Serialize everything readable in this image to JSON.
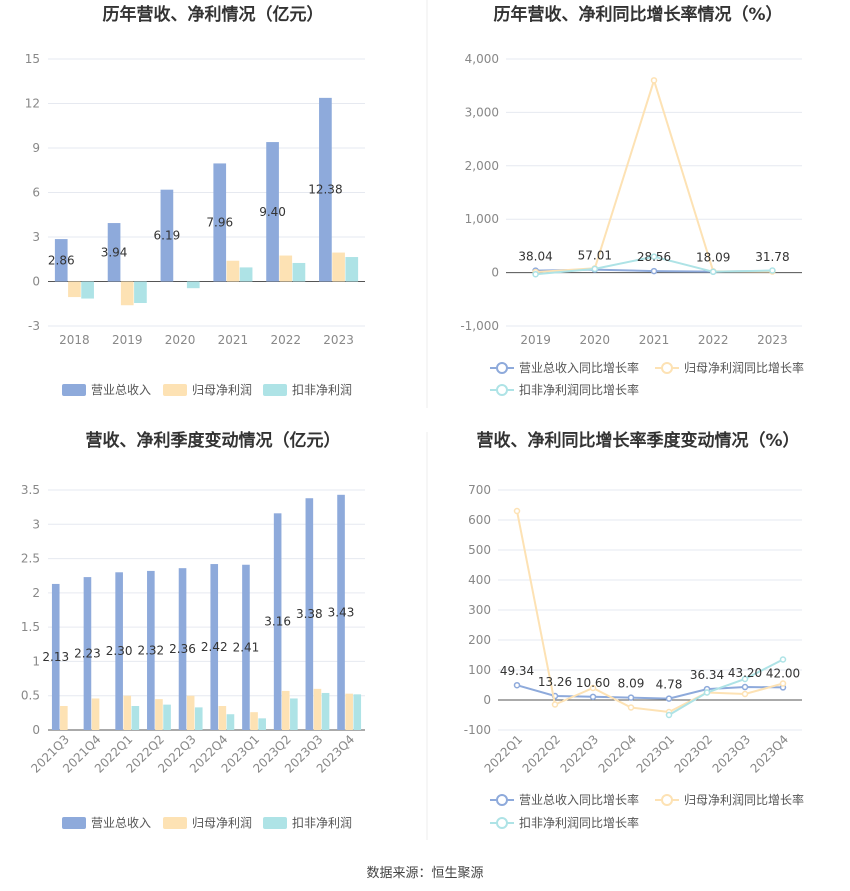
{
  "source": "数据来源：恒生聚源",
  "chart_data": [
    {
      "type": "bar",
      "title": "历年营收、净利情况（亿元）",
      "categories": [
        "2018",
        "2019",
        "2020",
        "2021",
        "2022",
        "2023"
      ],
      "ylim": [
        -3,
        15
      ],
      "yticks": [
        -3,
        0,
        3,
        6,
        9,
        12,
        15
      ],
      "series": [
        {
          "name": "营业总收入",
          "values": [
            2.86,
            3.94,
            6.19,
            7.96,
            9.4,
            12.38
          ],
          "labels": [
            "2.86",
            "3.94",
            "6.19",
            "7.96",
            "9.40",
            "12.38"
          ]
        },
        {
          "name": "归母净利润",
          "values": [
            -1.05,
            -1.6,
            0,
            1.4,
            1.75,
            1.95
          ]
        },
        {
          "name": "扣非净利润",
          "values": [
            -1.15,
            -1.45,
            -0.45,
            0.95,
            1.25,
            1.65
          ]
        }
      ],
      "colors": [
        "#8eaadb",
        "#fde2b4",
        "#aee3e6"
      ]
    },
    {
      "type": "line",
      "title": "历年营收、净利同比增长率情况（%）",
      "categories": [
        "2019",
        "2020",
        "2021",
        "2022",
        "2023"
      ],
      "ylim": [
        -1000,
        4000
      ],
      "yticks": [
        -1000,
        0,
        1000,
        2000,
        3000,
        4000
      ],
      "ytick_labels": [
        "-1,000",
        "0",
        "1,000",
        "2,000",
        "3,000",
        "4,000"
      ],
      "series": [
        {
          "name": "营业总收入同比增长率",
          "values": [
            38.04,
            57.01,
            28.56,
            18.09,
            31.78
          ],
          "labels": [
            "38.04",
            "57.01",
            "28.56",
            "18.09",
            "31.78"
          ]
        },
        {
          "name": "归母净利润同比增长率",
          "values": [
            10,
            80,
            3600,
            25,
            20
          ]
        },
        {
          "name": "扣非净利润同比增长率",
          "values": [
            -30,
            70,
            300,
            15,
            40
          ]
        }
      ],
      "colors": [
        "#8eaadb",
        "#fde2b4",
        "#aee3e6"
      ]
    },
    {
      "type": "bar",
      "title": "营收、净利季度变动情况（亿元）",
      "categories": [
        "2021Q3",
        "2021Q4",
        "2022Q1",
        "2022Q2",
        "2022Q3",
        "2022Q4",
        "2023Q1",
        "2023Q2",
        "2023Q3",
        "2023Q4"
      ],
      "ylim": [
        0,
        3.5
      ],
      "yticks": [
        0,
        0.5,
        1,
        1.5,
        2,
        2.5,
        3,
        3.5
      ],
      "series": [
        {
          "name": "营业总收入",
          "values": [
            2.13,
            2.23,
            2.3,
            2.32,
            2.36,
            2.42,
            2.41,
            3.16,
            3.38,
            3.43
          ],
          "labels": [
            "2.13",
            "2.23",
            "2.30",
            "2.32",
            "2.36",
            "2.42",
            "2.41",
            "3.16",
            "3.38",
            "3.43"
          ]
        },
        {
          "name": "归母净利润",
          "values": [
            0.35,
            0.46,
            0.5,
            0.45,
            0.5,
            0.35,
            0.26,
            0.57,
            0.6,
            0.53
          ]
        },
        {
          "name": "扣非净利润",
          "values": [
            0,
            0,
            0.35,
            0.37,
            0.33,
            0.23,
            0.17,
            0.46,
            0.54,
            0.52
          ]
        }
      ],
      "colors": [
        "#8eaadb",
        "#fde2b4",
        "#aee3e6"
      ]
    },
    {
      "type": "line",
      "title": "营收、净利同比增长率季度变动情况（%）",
      "categories": [
        "2022Q1",
        "2022Q2",
        "2022Q3",
        "2022Q4",
        "2023Q1",
        "2023Q2",
        "2023Q3",
        "2023Q4"
      ],
      "ylim": [
        -100,
        700
      ],
      "yticks": [
        -100,
        0,
        100,
        200,
        300,
        400,
        500,
        600,
        700
      ],
      "series": [
        {
          "name": "营业总收入同比增长率",
          "values": [
            49.34,
            13.26,
            10.6,
            8.09,
            4.78,
            36.34,
            43.2,
            42.0
          ],
          "labels": [
            "49.34",
            "13.26",
            "10.60",
            "8.09",
            "4.78",
            "36.34",
            "43.20",
            "42.00"
          ]
        },
        {
          "name": "归母净利润同比增长率",
          "values": [
            630,
            -15,
            40,
            -25,
            -40,
            25,
            20,
            55
          ]
        },
        {
          "name": "扣非净利润同比增长率",
          "values": [
            null,
            null,
            null,
            null,
            -50,
            25,
            70,
            135
          ]
        }
      ],
      "colors": [
        "#8eaadb",
        "#fde2b4",
        "#aee3e6"
      ]
    }
  ]
}
